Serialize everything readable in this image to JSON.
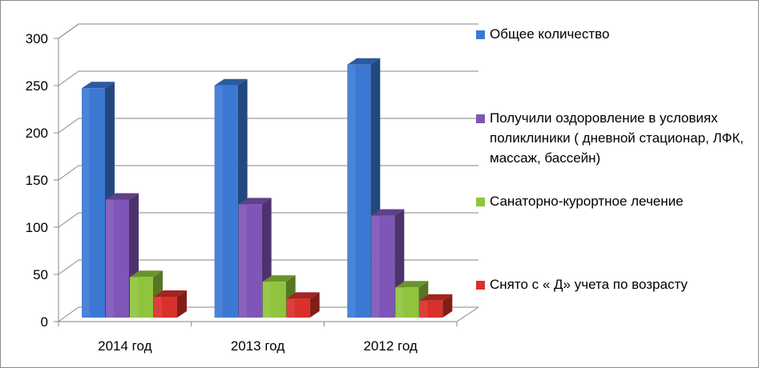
{
  "chart_data": {
    "type": "bar",
    "categories": [
      "2014 год",
      "2013 год",
      "2012 год"
    ],
    "series": [
      {
        "name": "Общее количество",
        "values": [
          243,
          246,
          268
        ],
        "color": "#3a78d4"
      },
      {
        "name": "Получили оздоровление в условиях поликлиники ( дневной стационар, ЛФК, массаж, бассейн)",
        "values": [
          125,
          120,
          108
        ],
        "color": "#7f55b7"
      },
      {
        "name": "Санаторно-курортное лечение",
        "values": [
          43,
          38,
          32
        ],
        "color": "#8fc43c"
      },
      {
        "name": "Снято с « Д» учета по возрасту",
        "values": [
          22,
          20,
          18
        ],
        "color": "#d9302c"
      }
    ],
    "y_ticks": [
      "0",
      "50",
      "100",
      "150",
      "200",
      "250",
      "300"
    ],
    "ylim": [
      0,
      300
    ],
    "grid": true,
    "legend_position": "right",
    "three_d": true
  }
}
